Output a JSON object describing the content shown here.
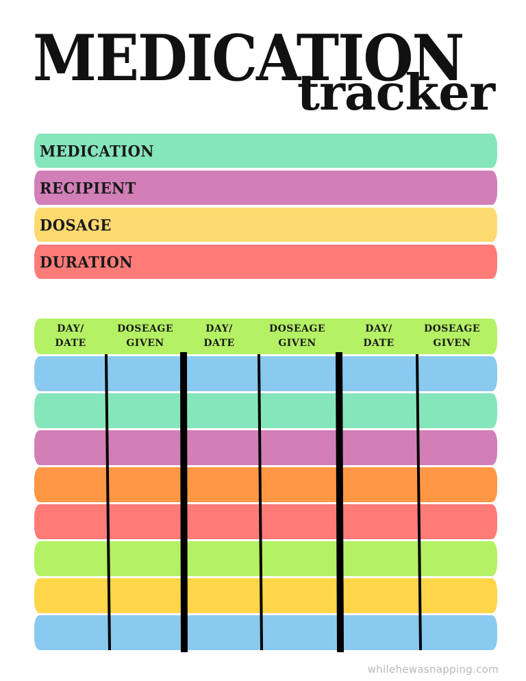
{
  "title": {
    "main": "MEDICATION",
    "sub": "tracker"
  },
  "info_fields": [
    {
      "label": "MEDICATION",
      "color": "#86E6BB"
    },
    {
      "label": "RECIPIENT",
      "color": "#D27FB8"
    },
    {
      "label": "DOSAGE",
      "color": "#FDDA70"
    },
    {
      "label": "DURATION",
      "color": "#FF7B78"
    }
  ],
  "log_table": {
    "header_color": "#B4F164",
    "columns": [
      "DAY/\nDATE",
      "DOSEAGE\nGIVEN",
      "DAY/\nDATE",
      "DOSEAGE\nGIVEN",
      "DAY/\nDATE",
      "DOSEAGE\nGIVEN"
    ],
    "row_colors": [
      "#8ACAF0",
      "#86E6BB",
      "#D27FB8",
      "#FF9745",
      "#FF7B78",
      "#B4F164",
      "#FFD54A",
      "#8ACAF0"
    ],
    "divider_color": "#000000"
  },
  "watermark": "whilehewasnapping.com"
}
